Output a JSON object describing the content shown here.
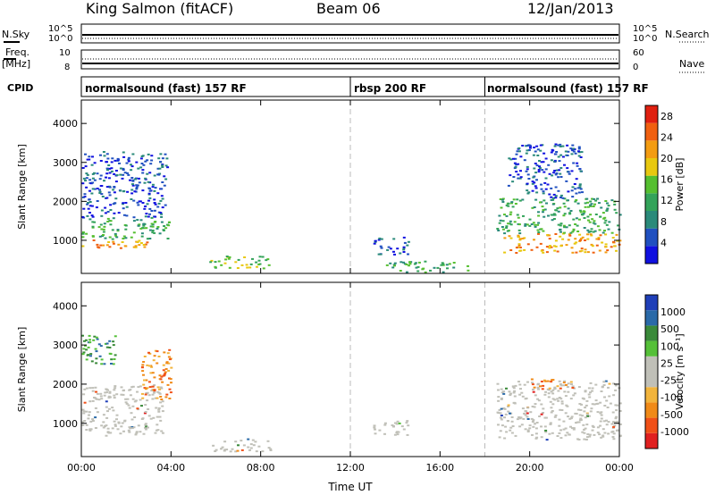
{
  "header": {
    "station": "King Salmon (fitACF)",
    "beam": "Beam 06",
    "date": "12/Jan/2013"
  },
  "status_panels": {
    "nsky_label": "N.Sky",
    "nsearch_label": "N.Search",
    "noise_ticks": [
      "10^5",
      "10^0"
    ],
    "freq_label_1": "Freq.",
    "freq_label_2": "[MHz]",
    "freq_ticks": [
      "10",
      "8"
    ],
    "nave_label": "Nave",
    "nave_ticks": [
      "60",
      "0"
    ],
    "cpid_label": "CPID"
  },
  "modes": [
    {
      "name": "normalsound (fast) 157 RF",
      "start_hour": 0
    },
    {
      "name": "rbsp 200 RF",
      "start_hour": 12
    },
    {
      "name": "normalsound (fast) 157 RF",
      "start_hour": 18
    }
  ],
  "colors": {
    "power": [
      "#1010e0",
      "#2050c0",
      "#2a8a7a",
      "#33a35a",
      "#55bf30",
      "#e8c810",
      "#f39c12",
      "#f06010",
      "#e02010"
    ],
    "velocity": [
      "#e02020",
      "#f05018",
      "#f08a18",
      "#f2b43c",
      "#c0c0b8",
      "#c0c0b8",
      "#55c038",
      "#3a8a3a",
      "#2a6aa8",
      "#1f3fb8"
    ],
    "ground": "#c0c0b8",
    "marker_line": "#bbbbbb"
  },
  "chart_data": [
    {
      "type": "heatmap",
      "title": "",
      "xlabel": "Time UT",
      "ylabel": "Slant Range [km]",
      "xlim": [
        0,
        24
      ],
      "ylim": [
        150,
        4600
      ],
      "x_ticks": [
        "00:00",
        "04:00",
        "08:00",
        "12:00",
        "16:00",
        "20:00",
        "00:00"
      ],
      "y_ticks": [
        "1000",
        "2000",
        "3000",
        "4000"
      ],
      "colorbar_label": "Power [dB]",
      "colorbar_ticks": [
        "28",
        "24",
        "20",
        "16",
        "12",
        "8",
        "4"
      ],
      "colorbar_range": [
        0,
        30
      ],
      "vertical_markers_hours": [
        12,
        18
      ],
      "echo_regions": [
        {
          "t": [
            0.0,
            2.9
          ],
          "r": [
            800,
            1050
          ],
          "dominant_value": 22
        },
        {
          "t": [
            0.0,
            3.9
          ],
          "r": [
            1050,
            1600
          ],
          "dominant_value": 12
        },
        {
          "t": [
            0.0,
            3.8
          ],
          "r": [
            1600,
            3300
          ],
          "dominant_value": 6
        },
        {
          "t": [
            5.7,
            8.4
          ],
          "r": [
            300,
            620
          ],
          "dominant_value": 14
        },
        {
          "t": [
            13.0,
            14.6
          ],
          "r": [
            650,
            1100
          ],
          "dominant_value": 6
        },
        {
          "t": [
            13.5,
            17.2
          ],
          "r": [
            200,
            480
          ],
          "dominant_value": 10
        },
        {
          "t": [
            18.8,
            24.0
          ],
          "r": [
            700,
            1200
          ],
          "dominant_value": 20
        },
        {
          "t": [
            18.5,
            24.0
          ],
          "r": [
            1200,
            2100
          ],
          "dominant_value": 12
        },
        {
          "t": [
            19.0,
            22.3
          ],
          "r": [
            2100,
            3500
          ],
          "dominant_value": 6
        }
      ]
    },
    {
      "type": "heatmap",
      "title": "",
      "xlabel": "Time UT",
      "ylabel": "Slant Range [km]",
      "xlim": [
        0,
        24
      ],
      "ylim": [
        150,
        4600
      ],
      "x_ticks": [
        "00:00",
        "04:00",
        "08:00",
        "12:00",
        "16:00",
        "20:00",
        "00:00"
      ],
      "y_ticks": [
        "1000",
        "2000",
        "3000",
        "4000"
      ],
      "colorbar_label": "Velocity [m s⁻¹]",
      "colorbar_ticks": [
        "1000",
        "500",
        "100",
        "25",
        "-25",
        "-100",
        "-500",
        "-1000"
      ],
      "vertical_markers_hours": [
        12,
        18
      ],
      "echo_regions": [
        {
          "t": [
            0.0,
            3.6
          ],
          "r": [
            700,
            2000
          ],
          "dominant_value": "ground scatter"
        },
        {
          "t": [
            2.6,
            4.0
          ],
          "r": [
            1600,
            2900
          ],
          "dominant_value": -150
        },
        {
          "t": [
            0.0,
            1.5
          ],
          "r": [
            2500,
            3300
          ],
          "dominant_value": 120
        },
        {
          "t": [
            5.8,
            8.4
          ],
          "r": [
            300,
            620
          ],
          "dominant_value": "ground scatter"
        },
        {
          "t": [
            13.0,
            14.6
          ],
          "r": [
            700,
            1100
          ],
          "dominant_value": "ground scatter"
        },
        {
          "t": [
            18.5,
            24.0
          ],
          "r": [
            600,
            2100
          ],
          "dominant_value": "ground scatter"
        },
        {
          "t": [
            20.0,
            22.0
          ],
          "r": [
            1900,
            2150
          ],
          "dominant_value": -150
        }
      ]
    }
  ]
}
